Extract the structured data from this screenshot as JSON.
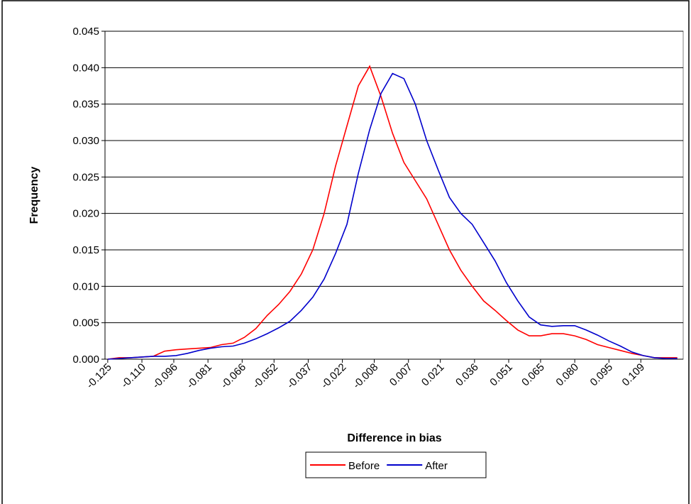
{
  "chart_data": {
    "type": "line",
    "x_label": "Difference in bias",
    "y_label": "Frequency",
    "x": [
      -0.125,
      -0.12,
      -0.115,
      -0.11,
      -0.105,
      -0.1,
      -0.095,
      -0.09,
      -0.085,
      -0.08,
      -0.075,
      -0.07,
      -0.065,
      -0.06,
      -0.055,
      -0.05,
      -0.045,
      -0.04,
      -0.035,
      -0.03,
      -0.025,
      -0.02,
      -0.015,
      -0.01,
      -0.005,
      0,
      0.005,
      0.01,
      0.015,
      0.02,
      0.025,
      0.03,
      0.035,
      0.04,
      0.045,
      0.05,
      0.055,
      0.06,
      0.065,
      0.07,
      0.075,
      0.08,
      0.085,
      0.09,
      0.095,
      0.1,
      0.105,
      0.11,
      0.115,
      0.12,
      0.125
    ],
    "series": [
      {
        "name": "Before",
        "color": "#ff0000",
        "values": [
          0,
          0.0002,
          0.0002,
          0.0003,
          0.0004,
          0.0011,
          0.0013,
          0.0014,
          0.0015,
          0.0016,
          0.002,
          0.0022,
          0.003,
          0.0042,
          0.006,
          0.0075,
          0.0093,
          0.0117,
          0.015,
          0.02,
          0.0265,
          0.032,
          0.0375,
          0.0402,
          0.036,
          0.031,
          0.027,
          0.0245,
          0.022,
          0.0185,
          0.015,
          0.0122,
          0.01,
          0.008,
          0.0067,
          0.0053,
          0.004,
          0.0032,
          0.0032,
          0.0035,
          0.0035,
          0.0032,
          0.0027,
          0.002,
          0.0016,
          0.0012,
          0.0008,
          0.0005,
          0.0002,
          0.0002,
          0.0002
        ]
      },
      {
        "name": "After",
        "color": "#0000cc",
        "values": [
          0,
          0.0001,
          0.0002,
          0.0003,
          0.0004,
          0.0004,
          0.0005,
          0.0008,
          0.0012,
          0.0015,
          0.0017,
          0.0018,
          0.0022,
          0.0028,
          0.0035,
          0.0043,
          0.0052,
          0.0067,
          0.0085,
          0.011,
          0.0145,
          0.0185,
          0.0255,
          0.0315,
          0.0365,
          0.0392,
          0.0385,
          0.035,
          0.03,
          0.026,
          0.0222,
          0.02,
          0.0185,
          0.016,
          0.0135,
          0.0105,
          0.008,
          0.0058,
          0.0047,
          0.0045,
          0.0046,
          0.0046,
          0.004,
          0.0033,
          0.0025,
          0.0018,
          0.001,
          0.0005,
          0.0002,
          0.0001,
          0.0001
        ]
      }
    ],
    "xlim": [
      -0.1262,
      0.1276
    ],
    "xticks": [
      -0.125,
      {
        "value": -0.11,
        "label": "-0.110"
      },
      -0.096,
      -0.081,
      -0.066,
      -0.052,
      -0.037,
      -0.022,
      -0.008,
      0.007,
      0.021,
      0.036,
      0.051,
      0.065,
      {
        "value": 0.08,
        "label": "0.080"
      },
      0.095,
      0.109
    ],
    "ylim": [
      0,
      0.045
    ],
    "yticks": [
      {
        "value": 0,
        "label": "0.000"
      },
      0.005,
      {
        "value": 0.01,
        "label": "0.010"
      },
      0.015,
      {
        "value": 0.02,
        "label": "0.020"
      },
      0.025,
      {
        "value": 0.03,
        "label": "0.030"
      },
      0.035,
      {
        "value": 0.04,
        "label": "0.040"
      },
      0.045
    ],
    "grid": true,
    "legend": "bottom"
  }
}
